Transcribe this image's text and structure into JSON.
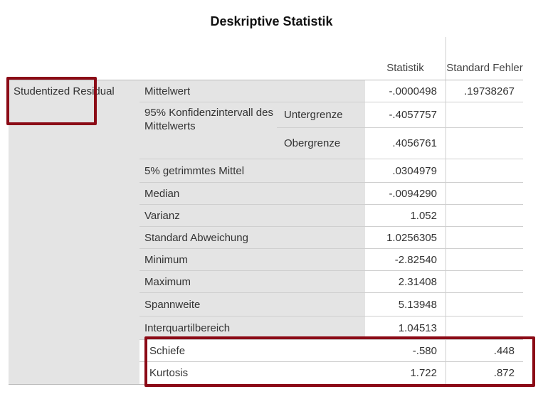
{
  "title": "Deskriptive Statistik",
  "headers": {
    "statistic": "Statistik",
    "std_error": "Standard Fehler"
  },
  "variable": "Studentized Residual",
  "ci": {
    "label": "95% Konfidenzintervall des Mittelwerts",
    "lower_label": "Untergrenze",
    "lower_value": "-.4057757",
    "upper_label": "Obergrenze",
    "upper_value": ".4056761"
  },
  "rows": [
    {
      "label": "Mittelwert",
      "stat": "-.0000498",
      "se": ".19738267"
    },
    {
      "label": "5% getrimmtes Mittel",
      "stat": ".0304979",
      "se": ""
    },
    {
      "label": "Median",
      "stat": "-.0094290",
      "se": ""
    },
    {
      "label": "Varianz",
      "stat": "1.052",
      "se": ""
    },
    {
      "label": "Standard Abweichung",
      "stat": "1.0256305",
      "se": ""
    },
    {
      "label": "Minimum",
      "stat": "-2.82540",
      "se": ""
    },
    {
      "label": "Maximum",
      "stat": "2.31408",
      "se": ""
    },
    {
      "label": "Spannweite",
      "stat": "5.13948",
      "se": ""
    },
    {
      "label": "Interquartilbereich",
      "stat": "1.04513",
      "se": ""
    },
    {
      "label": "Schiefe",
      "stat": "-.580",
      "se": ".448"
    },
    {
      "label": "Kurtosis",
      "stat": "1.722",
      "se": ".872"
    }
  ],
  "colors": {
    "highlight": "#8b0a16",
    "label_bg": "#e4e4e4",
    "grid": "#cfcfcf"
  }
}
